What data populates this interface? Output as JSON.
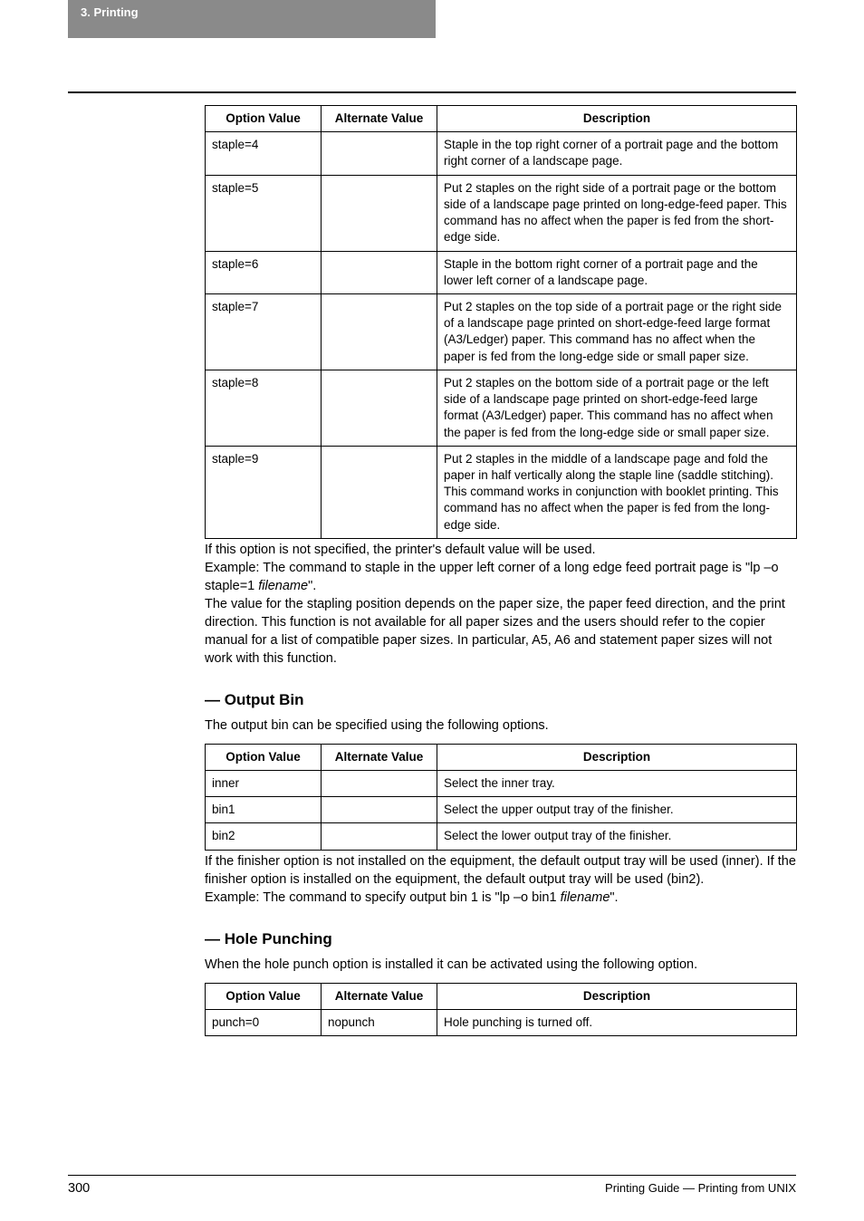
{
  "header": {
    "tab": "3. Printing"
  },
  "staple_table": {
    "headers": [
      "Option Value",
      "Alternate Value",
      "Description"
    ],
    "rows": [
      {
        "opt": "staple=4",
        "alt": "",
        "desc": "Staple in the top right corner of a portrait page and the bottom right corner of a landscape page."
      },
      {
        "opt": "staple=5",
        "alt": "",
        "desc": "Put 2 staples on the right side of a portrait page or the bottom side of a landscape page printed on long-edge-feed paper. This command has no affect when the paper is fed from the short-edge side."
      },
      {
        "opt": "staple=6",
        "alt": "",
        "desc": "Staple in the bottom right corner of a portrait page and the lower left corner of a landscape page."
      },
      {
        "opt": "staple=7",
        "alt": "",
        "desc": "Put 2 staples on the top side of a portrait page or the right side of a landscape page printed on short-edge-feed large format (A3/Ledger) paper. This command has no affect when the paper is fed from the long-edge side or small paper size."
      },
      {
        "opt": "staple=8",
        "alt": "",
        "desc": "Put 2 staples on the bottom side of a portrait page or the left side of a landscape page printed on short-edge-feed large format (A3/Ledger) paper. This command has no affect when the paper is fed from the long-edge side or small paper size."
      },
      {
        "opt": "staple=9",
        "alt": "",
        "desc": "Put 2 staples in the middle of a landscape page and fold the paper in half vertically along the staple line (saddle stitching). This command works in conjunction with booklet printing. This command has no affect when the paper is fed from the long-edge side."
      }
    ]
  },
  "staple_notes": {
    "line1": "If this option is not specified, the printer's default value will be used.",
    "line2a": "Example: The command to staple in the upper left corner of a long edge feed portrait page is \"lp –o staple=1 ",
    "line2_italic": "filename",
    "line2b": "\".",
    "line3": "The value for the stapling position depends on the paper size, the paper feed direction, and the print direction. This function is not available for all paper sizes and the users should refer to the copier manual for a list of compatible paper sizes. In particular, A5, A6 and statement paper sizes will not work with this function."
  },
  "output_bin": {
    "heading": "— Output Bin",
    "intro": "The output bin can be specified using the following options.",
    "headers": [
      "Option Value",
      "Alternate Value",
      "Description"
    ],
    "rows": [
      {
        "opt": "inner",
        "alt": "",
        "desc": "Select the inner tray."
      },
      {
        "opt": "bin1",
        "alt": "",
        "desc": "Select the upper output tray of the finisher."
      },
      {
        "opt": "bin2",
        "alt": "",
        "desc": "Select the lower output tray of the finisher."
      }
    ],
    "note1": "If the finisher option is not installed on the equipment, the default output tray will be used (inner).  If the finisher option is installed on the equipment, the default output tray will be used (bin2).",
    "note2a": "Example: The command to specify output bin 1 is \"lp –o bin1 ",
    "note2_italic": "filename",
    "note2b": "\"."
  },
  "hole_punch": {
    "heading": "— Hole Punching",
    "intro": "When the hole punch option is installed it can be activated using the following option.",
    "headers": [
      "Option Value",
      "Alternate Value",
      "Description"
    ],
    "rows": [
      {
        "opt": "punch=0",
        "alt": "nopunch",
        "desc": "Hole punching is turned off."
      }
    ]
  },
  "footer": {
    "page": "300",
    "title": "Printing Guide — Printing from UNIX"
  }
}
